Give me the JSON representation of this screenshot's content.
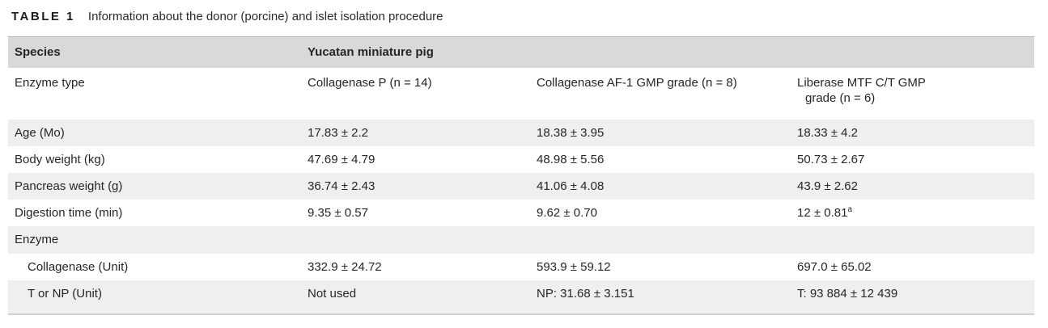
{
  "caption": {
    "label": "TABLE 1",
    "text": "Information about the donor (porcine) and islet isolation procedure"
  },
  "colors": {
    "header_bg": "#d9d9d9",
    "stripe_bg": "#efefef",
    "text_color": "#262626",
    "border_top": "#b3b3b3",
    "border_bottom": "#cfcfcf"
  },
  "table": {
    "species_row": {
      "label": "Species",
      "value": "Yucatan miniature pig"
    },
    "enzyme_type_row": {
      "label": "Enzyme type",
      "values": [
        "Collagenase P (n = 14)",
        "Collagenase AF-1 GMP grade (n = 8)",
        "Liberase MTF C/T GMP grade (n = 6)"
      ]
    },
    "rows": [
      {
        "label": "Age (Mo)",
        "values": [
          "17.83 ± 2.2",
          "18.38 ± 3.95",
          "18.33 ± 4.2"
        ]
      },
      {
        "label": "Body weight (kg)",
        "values": [
          "47.69 ± 4.79",
          "48.98 ± 5.56",
          "50.73 ± 2.67"
        ]
      },
      {
        "label": "Pancreas weight (g)",
        "values": [
          "36.74 ± 2.43",
          "41.06 ± 4.08",
          "43.9 ± 2.62"
        ]
      },
      {
        "label": "Digestion time (min)",
        "values": [
          "9.35 ± 0.57",
          "9.62 ± 0.70",
          "12 ± 0.81"
        ],
        "superscript": "a"
      },
      {
        "label": "Enzyme",
        "values": [
          "",
          "",
          ""
        ]
      },
      {
        "label": "Collagenase (Unit)",
        "values": [
          "332.9 ± 24.72",
          "593.9 ± 59.12",
          "697.0 ± 65.02"
        ]
      },
      {
        "label": "T or NP (Unit)",
        "values": [
          "Not used",
          "NP: 31.68 ± 3.151",
          "T: 93 884 ± 12 439"
        ]
      }
    ]
  }
}
